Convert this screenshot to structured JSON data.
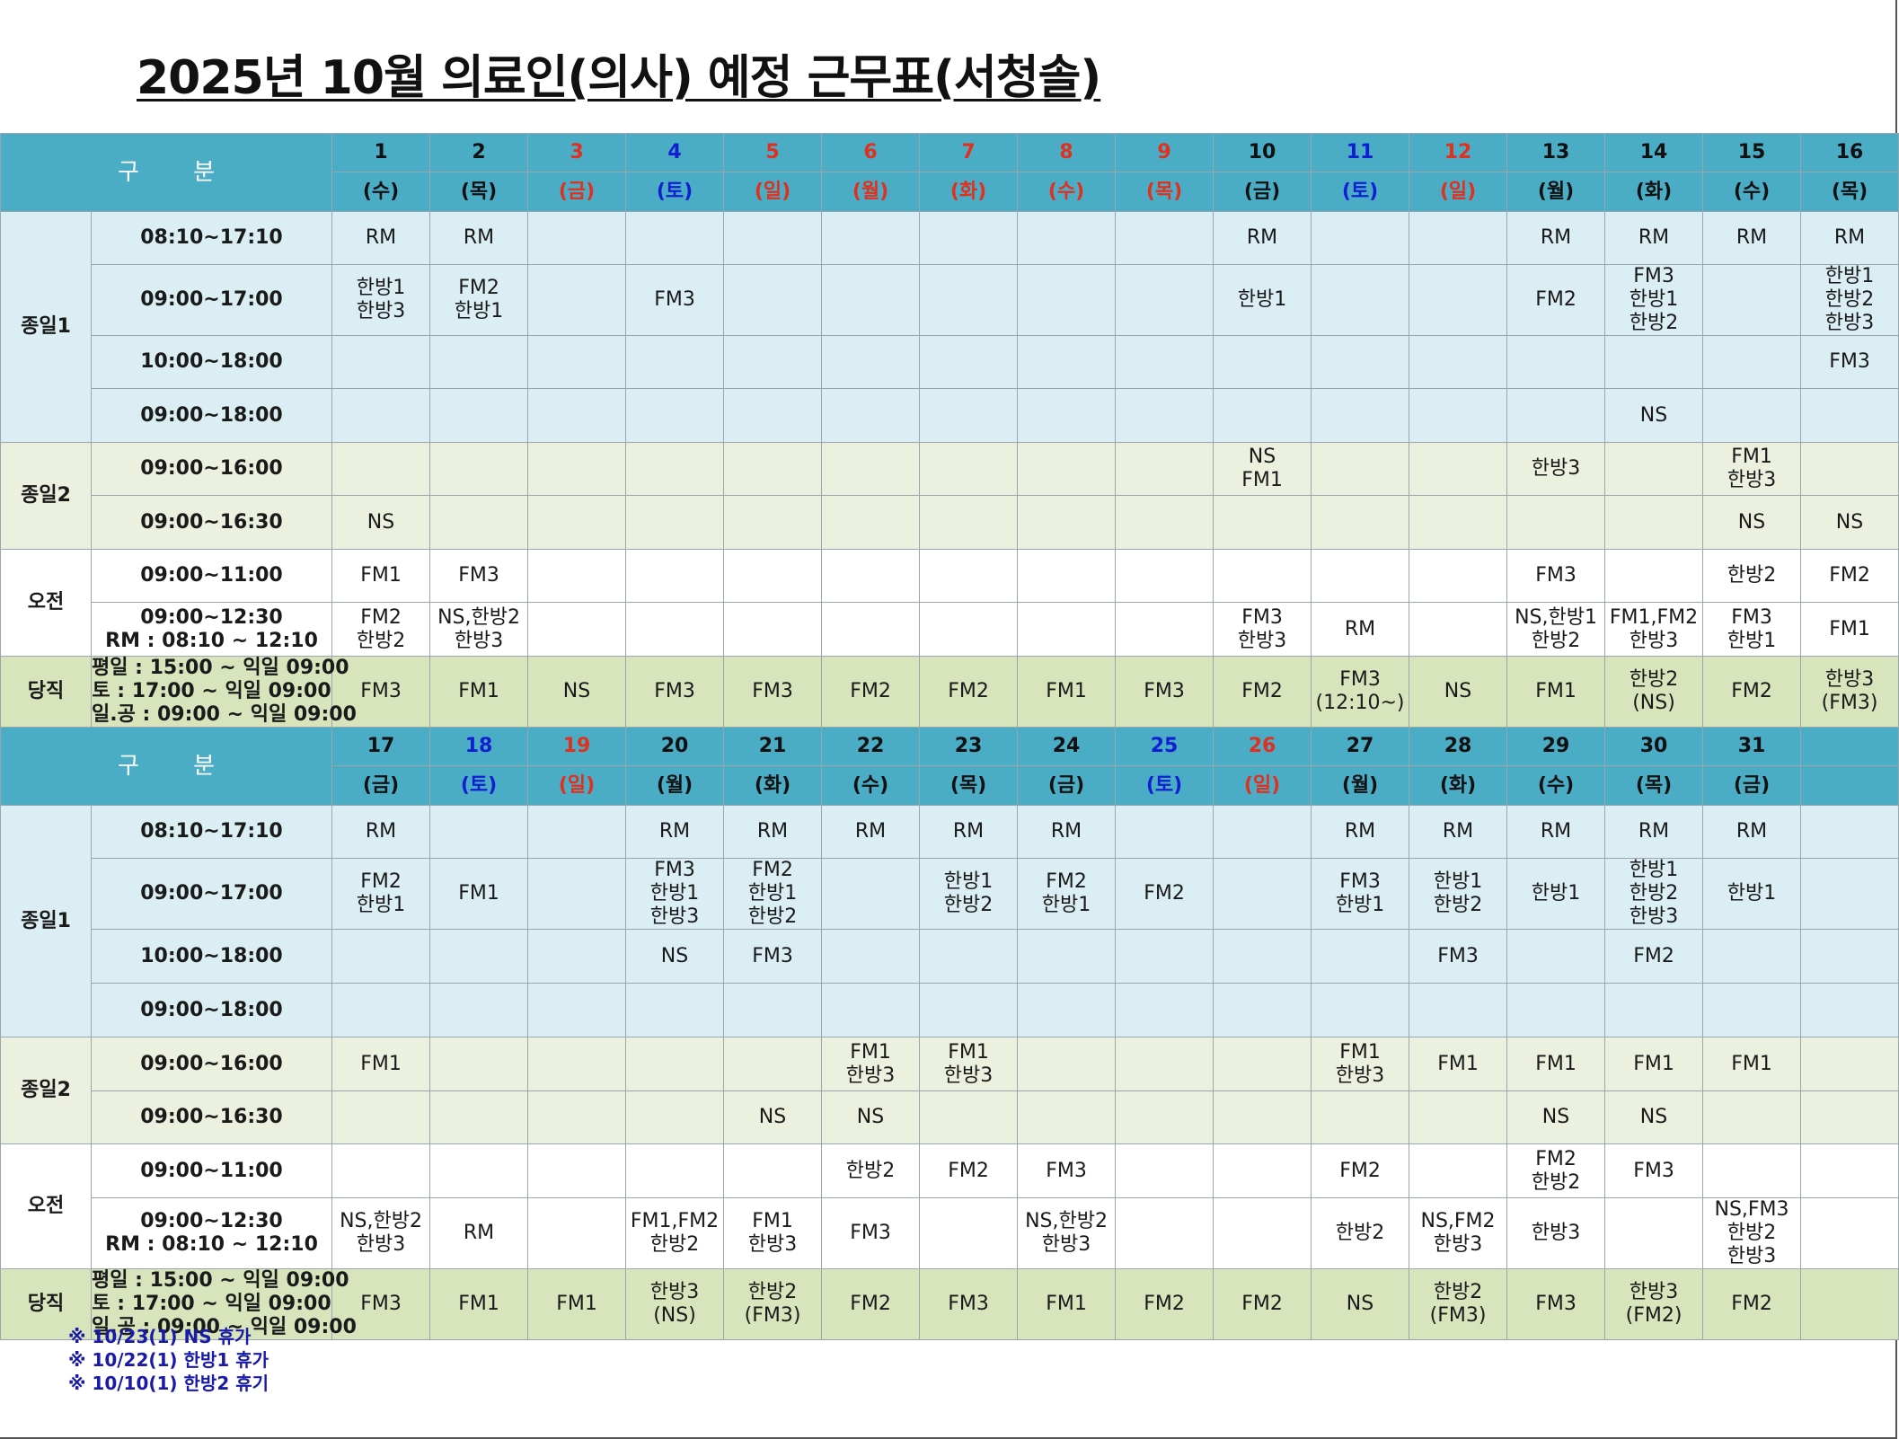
{
  "title": "2025년 10월  의료인(의사) 예정 근무표(서청솔)",
  "header_label": "구 분",
  "sections": {
    "jongil1": "종일1",
    "jongil2": "종일2",
    "ojeon": "오전",
    "dangjik": "당직"
  },
  "times": {
    "t1": "08:10~17:10",
    "t2": "09:00~17:00",
    "t3": "10:00~18:00",
    "t4": "09:00~18:00",
    "t5": "09:00~16:00",
    "t6": "09:00~16:30",
    "t7": "09:00~11:00",
    "t8a": "09:00~12:30",
    "t8b": "RM : 08:10 ~ 12:10"
  },
  "duty_note": [
    "평일 : 15:00 ~ 익일 09:00",
    "토    : 17:00 ~ 익일 09:00",
    "일.공 : 09:00 ~ 익일 09:00"
  ],
  "colors": {
    "header_bg": "#4bacc6",
    "jongil1_bg": "#daeef3",
    "jongil2_bg": "#ebf1de",
    "duty_bg": "#d7e4bc",
    "holiday_red": "#e0301e",
    "saturday_blue": "#1020d0"
  },
  "week1": {
    "days": [
      {
        "d": "1",
        "w": "(수)",
        "c": ""
      },
      {
        "d": "2",
        "w": "(목)",
        "c": ""
      },
      {
        "d": "3",
        "w": "(금)",
        "c": "red"
      },
      {
        "d": "4",
        "w": "(토)",
        "c": "blue"
      },
      {
        "d": "5",
        "w": "(일)",
        "c": "red"
      },
      {
        "d": "6",
        "w": "(월)",
        "c": "red"
      },
      {
        "d": "7",
        "w": "(화)",
        "c": "red"
      },
      {
        "d": "8",
        "w": "(수)",
        "c": "red"
      },
      {
        "d": "9",
        "w": "(목)",
        "c": "red"
      },
      {
        "d": "10",
        "w": "(금)",
        "c": ""
      },
      {
        "d": "11",
        "w": "(토)",
        "c": "blue"
      },
      {
        "d": "12",
        "w": "(일)",
        "c": "red"
      },
      {
        "d": "13",
        "w": "(월)",
        "c": ""
      },
      {
        "d": "14",
        "w": "(화)",
        "c": ""
      },
      {
        "d": "15",
        "w": "(수)",
        "c": ""
      },
      {
        "d": "16",
        "w": "(목)",
        "c": ""
      }
    ],
    "rows": {
      "r1": [
        [
          "RM"
        ],
        [
          "RM"
        ],
        [],
        [],
        [],
        [],
        [],
        [],
        [],
        [
          "RM"
        ],
        [],
        [],
        [
          "RM"
        ],
        [
          "RM"
        ],
        [
          "RM"
        ],
        [
          "RM"
        ]
      ],
      "r2": [
        [
          "한방1",
          "한방3"
        ],
        [
          "FM2",
          "한방1"
        ],
        [],
        [
          "FM3"
        ],
        [],
        [],
        [],
        [],
        [],
        [
          "한방1"
        ],
        [],
        [],
        [
          "FM2"
        ],
        [
          "FM3",
          "한방1",
          "한방2"
        ],
        [],
        [
          "한방1",
          "한방2",
          "한방3"
        ]
      ],
      "r3": [
        [],
        [],
        [],
        [],
        [],
        [],
        [],
        [],
        [],
        [],
        [],
        [],
        [],
        [],
        [],
        [
          "FM3"
        ]
      ],
      "r4": [
        [],
        [],
        [],
        [],
        [],
        [],
        [],
        [],
        [],
        [],
        [],
        [],
        [],
        [
          "NS"
        ],
        [],
        []
      ],
      "r5": [
        [],
        [],
        [],
        [],
        [],
        [],
        [],
        [],
        [],
        [
          "NS",
          "FM1"
        ],
        [],
        [],
        [
          "한방3"
        ],
        [],
        [
          "FM1",
          "한방3"
        ],
        []
      ],
      "r6": [
        [
          "NS"
        ],
        [],
        [],
        [],
        [],
        [],
        [],
        [],
        [],
        [],
        [],
        [],
        [],
        [],
        [
          "NS"
        ],
        [
          "NS"
        ]
      ],
      "r7": [
        [
          "FM1"
        ],
        [
          "FM3"
        ],
        [],
        [],
        [],
        [],
        [],
        [],
        [],
        [],
        [],
        [],
        [
          "FM3"
        ],
        [],
        [
          "한방2"
        ],
        [
          "FM2"
        ]
      ],
      "r8": [
        [
          "FM2",
          "한방2"
        ],
        [
          "NS,한방2",
          "한방3"
        ],
        [],
        [],
        [],
        [],
        [],
        [],
        [],
        [
          "FM3",
          "한방3"
        ],
        [
          "RM"
        ],
        [],
        [
          "NS,한방1",
          "한방2"
        ],
        [
          "FM1,FM2",
          "한방3"
        ],
        [
          "FM3",
          "한방1"
        ],
        [
          "FM1"
        ]
      ],
      "duty": [
        [
          "FM3"
        ],
        [
          "FM1"
        ],
        [
          "NS"
        ],
        [
          "FM3"
        ],
        [
          "FM3"
        ],
        [
          "FM2"
        ],
        [
          "FM2"
        ],
        [
          "FM1"
        ],
        [
          "FM3"
        ],
        [
          "FM2"
        ],
        [
          "FM3",
          "(12:10~)"
        ],
        [
          "NS"
        ],
        [
          "FM1"
        ],
        [
          "한방2",
          "(NS)"
        ],
        [
          "FM2"
        ],
        [
          "한방3",
          "(FM3)"
        ]
      ]
    }
  },
  "week2": {
    "days": [
      {
        "d": "17",
        "w": "(금)",
        "c": ""
      },
      {
        "d": "18",
        "w": "(토)",
        "c": "blue"
      },
      {
        "d": "19",
        "w": "(일)",
        "c": "red"
      },
      {
        "d": "20",
        "w": "(월)",
        "c": ""
      },
      {
        "d": "21",
        "w": "(화)",
        "c": ""
      },
      {
        "d": "22",
        "w": "(수)",
        "c": ""
      },
      {
        "d": "23",
        "w": "(목)",
        "c": ""
      },
      {
        "d": "24",
        "w": "(금)",
        "c": ""
      },
      {
        "d": "25",
        "w": "(토)",
        "c": "blue"
      },
      {
        "d": "26",
        "w": "(일)",
        "c": "red"
      },
      {
        "d": "27",
        "w": "(월)",
        "c": ""
      },
      {
        "d": "28",
        "w": "(화)",
        "c": ""
      },
      {
        "d": "29",
        "w": "(수)",
        "c": ""
      },
      {
        "d": "30",
        "w": "(목)",
        "c": ""
      },
      {
        "d": "31",
        "w": "(금)",
        "c": ""
      },
      {
        "d": "",
        "w": "",
        "c": ""
      }
    ],
    "rows": {
      "r1": [
        [
          "RM"
        ],
        [],
        [],
        [
          "RM"
        ],
        [
          "RM"
        ],
        [
          "RM"
        ],
        [
          "RM"
        ],
        [
          "RM"
        ],
        [],
        [],
        [
          "RM"
        ],
        [
          "RM"
        ],
        [
          "RM"
        ],
        [
          "RM"
        ],
        [
          "RM"
        ],
        []
      ],
      "r2": [
        [
          "FM2",
          "한방1"
        ],
        [
          "FM1"
        ],
        [],
        [
          "FM3",
          "한방1",
          "한방3"
        ],
        [
          "FM2",
          "한방1",
          "한방2"
        ],
        [],
        [
          "한방1",
          "한방2"
        ],
        [
          "FM2",
          "한방1"
        ],
        [
          "FM2"
        ],
        [],
        [
          "FM3",
          "한방1"
        ],
        [
          "한방1",
          "한방2"
        ],
        [
          "한방1"
        ],
        [
          "한방1",
          "한방2",
          "한방3"
        ],
        [
          "한방1"
        ],
        []
      ],
      "r3": [
        [],
        [],
        [],
        [
          "NS"
        ],
        [
          "FM3"
        ],
        [],
        [],
        [],
        [],
        [],
        [],
        [
          "FM3"
        ],
        [],
        [
          "FM2"
        ],
        [],
        []
      ],
      "r4": [
        [],
        [],
        [],
        [],
        [],
        [],
        [],
        [],
        [],
        [],
        [],
        [],
        [],
        [],
        [],
        []
      ],
      "r5": [
        [
          "FM1"
        ],
        [],
        [],
        [],
        [],
        [
          "FM1",
          "한방3"
        ],
        [
          "FM1",
          "한방3"
        ],
        [],
        [],
        [],
        [
          "FM1",
          "한방3"
        ],
        [
          "FM1"
        ],
        [
          "FM1"
        ],
        [
          "FM1"
        ],
        [
          "FM1"
        ],
        []
      ],
      "r6": [
        [],
        [],
        [],
        [],
        [
          "NS"
        ],
        [
          "NS"
        ],
        [],
        [],
        [],
        [],
        [],
        [],
        [
          "NS"
        ],
        [
          "NS"
        ],
        [],
        []
      ],
      "r7": [
        [],
        [],
        [],
        [],
        [],
        [
          "한방2"
        ],
        [
          "FM2"
        ],
        [
          "FM3"
        ],
        [],
        [],
        [
          "FM2"
        ],
        [],
        [
          "FM2",
          "한방2"
        ],
        [
          "FM3"
        ],
        [],
        []
      ],
      "r8": [
        [
          "NS,한방2",
          "한방3"
        ],
        [
          "RM"
        ],
        [],
        [
          "FM1,FM2",
          "한방2"
        ],
        [
          "FM1",
          "한방3"
        ],
        [
          "FM3"
        ],
        [],
        [
          "NS,한방2",
          "한방3"
        ],
        [],
        [],
        [
          "한방2"
        ],
        [
          "NS,FM2",
          "한방3"
        ],
        [
          "한방3"
        ],
        [],
        [
          "NS,FM3",
          "한방2",
          "한방3"
        ],
        []
      ],
      "duty": [
        [
          "FM3"
        ],
        [
          "FM1"
        ],
        [
          "FM1"
        ],
        [
          "한방3",
          "(NS)"
        ],
        [
          "한방2",
          "(FM3)"
        ],
        [
          "FM2"
        ],
        [
          "FM3"
        ],
        [
          "FM1"
        ],
        [
          "FM2"
        ],
        [
          "FM2"
        ],
        [
          "NS"
        ],
        [
          "한방2",
          "(FM3)"
        ],
        [
          "FM3"
        ],
        [
          "한방3",
          "(FM2)"
        ],
        [
          "FM2"
        ],
        []
      ]
    }
  },
  "notes": [
    "※ 10/23(1) NS 휴가",
    "※ 10/22(1) 한방1 휴가",
    "※ 10/10(1) 한방2 휴기"
  ]
}
